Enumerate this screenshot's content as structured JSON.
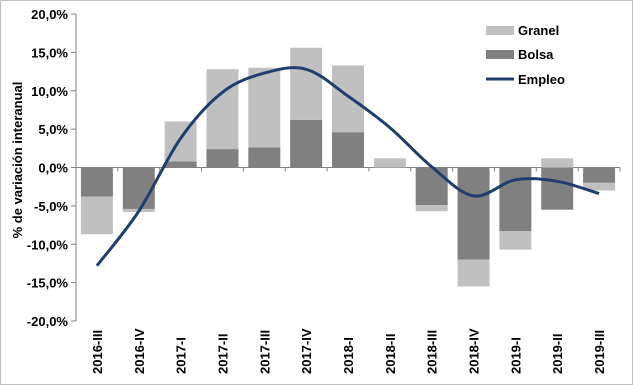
{
  "chart_data": {
    "type": "bar",
    "stacked": true,
    "categories": [
      "2016-III",
      "2016-IV",
      "2017-I",
      "2017-II",
      "2017-III",
      "2017-IV",
      "2018-I",
      "2018-II",
      "2018-III",
      "2018-IV",
      "2019-I",
      "2019-II",
      "2019-III"
    ],
    "ylabel": "% de variación interanual",
    "ylim": [
      -20,
      20
    ],
    "yticks": [
      "20,0%",
      "15,0%",
      "10,0%",
      "5,0%",
      "0,0%",
      "-5,0%",
      "-10,0%",
      "-15,0%",
      "-20,0%"
    ],
    "legend_position": "top-right",
    "series": [
      {
        "name": "Granel",
        "kind": "bar",
        "color": "#c0c0c0",
        "values": [
          -4.9,
          -0.4,
          5.2,
          10.4,
          10.4,
          9.4,
          8.7,
          1.2,
          -0.8,
          -3.5,
          -2.4,
          1.2,
          -1.0
        ]
      },
      {
        "name": "Bolsa",
        "kind": "bar",
        "color": "#808080",
        "values": [
          -3.8,
          -5.4,
          0.8,
          2.4,
          2.6,
          6.2,
          4.6,
          0.0,
          -4.9,
          -12.0,
          -8.3,
          -5.5,
          -2.0
        ]
      },
      {
        "name": "Empleo",
        "kind": "line",
        "color": "#1f3e6e",
        "values": [
          -12.8,
          -5.7,
          3.8,
          9.8,
          12.3,
          12.8,
          9.3,
          5.2,
          0.1,
          -3.7,
          -1.6,
          -1.8,
          -3.4
        ]
      }
    ]
  }
}
